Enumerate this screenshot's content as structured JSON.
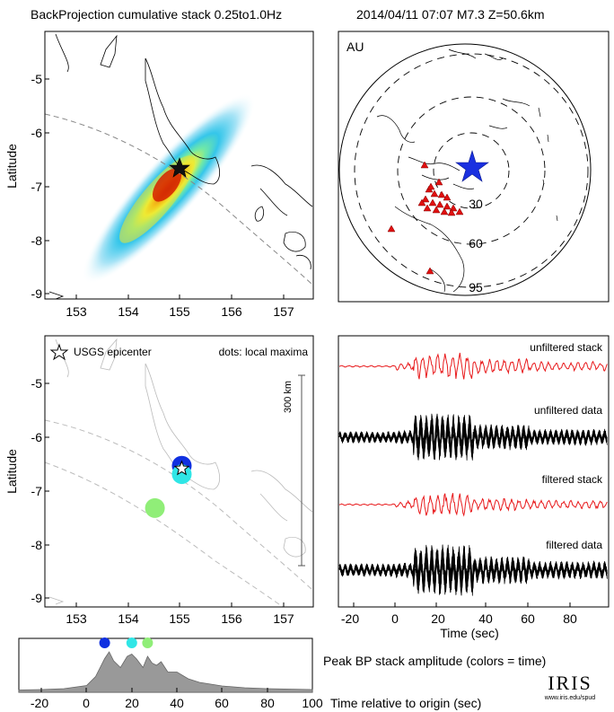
{
  "header": {
    "left": "BackProjection cumulative stack 0.25to1.0Hz",
    "right": "2014/04/11 07:07   M7.3  Z=50.6km"
  },
  "map_top": {
    "ylabel": "Latitude",
    "xticks": [
      "153",
      "154",
      "155",
      "156",
      "157"
    ],
    "yticks": [
      "-5",
      "-6",
      "-7",
      "-8",
      "-9"
    ]
  },
  "globe": {
    "label": "AU",
    "ring_labels": [
      "30",
      "60",
      "95"
    ]
  },
  "map_bottom": {
    "ylabel": "Latitude",
    "xticks": [
      "153",
      "154",
      "155",
      "156",
      "157"
    ],
    "yticks": [
      "-5",
      "-6",
      "-7",
      "-8",
      "-9"
    ],
    "legend_star": "USGS epicenter",
    "legend_dots": "dots: local maxima",
    "scale_label": "300 km"
  },
  "seismo": {
    "labels": [
      "unfiltered stack",
      "unfiltered data",
      "filtered stack",
      "filtered data"
    ],
    "xticks": [
      "-20",
      "0",
      "20",
      "40",
      "60",
      "80"
    ],
    "xlabel": "Time (sec)"
  },
  "peak": {
    "xticks": [
      "-20",
      "0",
      "20",
      "40",
      "60",
      "80",
      "100"
    ],
    "xlabel": "Time relative to origin (sec)",
    "title": "Peak BP stack amplitude (colors = time)"
  },
  "logo": {
    "name": "IRIS",
    "url": "www.iris.edu/spud"
  },
  "colors": {
    "stack_red": "#e8191b",
    "data_black": "#000000",
    "peak_fill": "#999999",
    "dot_blue": "#1030e0",
    "dot_cyan": "#30e6e6",
    "dot_green": "#90ee78",
    "triangle_red": "#e01010",
    "star_blue": "#1a30e0"
  },
  "chart_data": [
    {
      "type": "heatmap",
      "title": "BackProjection cumulative stack 0.25to1.0Hz",
      "ylabel": "Latitude",
      "xlim": [
        152.5,
        157.5
      ],
      "ylim": [
        -9.1,
        -4.3
      ],
      "epicenter": {
        "lon": 155.05,
        "lat": -6.65
      }
    },
    {
      "type": "scatter",
      "ylabel": "Latitude",
      "xlim": [
        152.5,
        157.5
      ],
      "ylim": [
        -9.1,
        -4.3
      ],
      "epicenter": {
        "lon": 155.05,
        "lat": -6.65
      },
      "points": [
        {
          "lon": 155.05,
          "lat": -6.6,
          "time": 8
        },
        {
          "lon": 155.05,
          "lat": -6.75,
          "time": 20
        },
        {
          "lon": 154.55,
          "lat": -7.35,
          "time": 27
        }
      ]
    },
    {
      "type": "line",
      "xlabel": "Time (sec)",
      "xlim": [
        -25,
        95
      ],
      "series": [
        {
          "name": "unfiltered stack"
        },
        {
          "name": "unfiltered data"
        },
        {
          "name": "filtered stack"
        },
        {
          "name": "filtered data"
        }
      ]
    },
    {
      "type": "area",
      "title": "Peak BP stack amplitude (colors = time)",
      "xlabel": "Time relative to origin (sec)",
      "xlim": [
        -30,
        100
      ],
      "x": [
        -30,
        -20,
        -10,
        0,
        4,
        8,
        10,
        12,
        15,
        18,
        20,
        22,
        25,
        27,
        29,
        31,
        33,
        36,
        40,
        45,
        50,
        60,
        70,
        80,
        90,
        100
      ],
      "values": [
        0.05,
        0.06,
        0.08,
        0.15,
        0.35,
        0.75,
        0.9,
        0.7,
        0.55,
        0.8,
        0.85,
        0.75,
        0.55,
        0.8,
        0.65,
        0.6,
        0.68,
        0.45,
        0.45,
        0.3,
        0.22,
        0.14,
        0.1,
        0.08,
        0.07,
        0.06
      ],
      "markers": [
        {
          "time": 8,
          "color": "#1030e0"
        },
        {
          "time": 20,
          "color": "#30e6e6"
        },
        {
          "time": 27,
          "color": "#90ee78"
        }
      ]
    }
  ]
}
